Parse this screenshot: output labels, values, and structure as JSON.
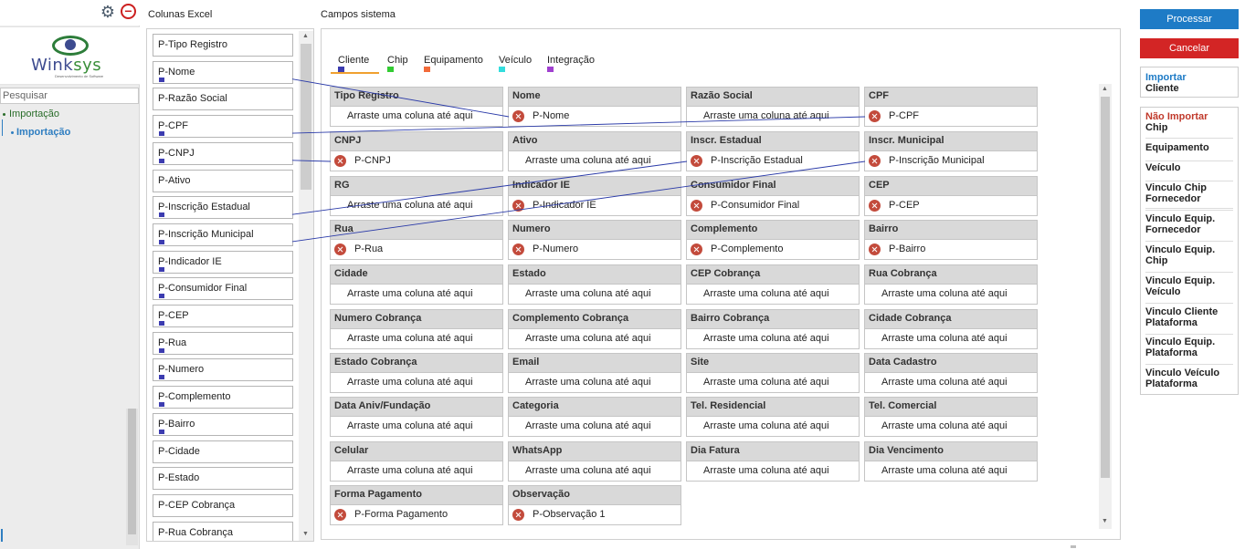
{
  "sidebar": {
    "logo_text_1": "Wink",
    "logo_text_2": "sys",
    "logo_subtitle": "Desenvolvimento de Software",
    "search_placeholder": "Pesquisar",
    "tree": [
      {
        "label": "Importação"
      },
      {
        "label": "Importação"
      }
    ]
  },
  "excel": {
    "title": "Colunas Excel",
    "columns": [
      {
        "label": "P-Tipo Registro",
        "marked": false
      },
      {
        "label": "P-Nome",
        "marked": true
      },
      {
        "label": "P-Razão Social",
        "marked": false
      },
      {
        "label": "P-CPF",
        "marked": true
      },
      {
        "label": "P-CNPJ",
        "marked": true
      },
      {
        "label": "P-Ativo",
        "marked": false
      },
      {
        "label": "P-Inscrição Estadual",
        "marked": true
      },
      {
        "label": "P-Inscrição Municipal",
        "marked": true
      },
      {
        "label": "P-Indicador IE",
        "marked": true
      },
      {
        "label": "P-Consumidor Final",
        "marked": true
      },
      {
        "label": "P-CEP",
        "marked": true
      },
      {
        "label": "P-Rua",
        "marked": true
      },
      {
        "label": "P-Numero",
        "marked": true
      },
      {
        "label": "P-Complemento",
        "marked": true
      },
      {
        "label": "P-Bairro",
        "marked": true
      },
      {
        "label": "P-Cidade",
        "marked": false
      },
      {
        "label": "P-Estado",
        "marked": false
      },
      {
        "label": "P-CEP Cobrança",
        "marked": false
      },
      {
        "label": "P-Rua Cobrança",
        "marked": false
      }
    ]
  },
  "campos": {
    "title": "Campos sistema",
    "tabs": [
      {
        "label": "Cliente",
        "color": "#3c3cb0"
      },
      {
        "label": "Chip",
        "color": "#33cc33"
      },
      {
        "label": "Equipamento",
        "color": "#f26b3a"
      },
      {
        "label": "Veículo",
        "color": "#33dddd"
      },
      {
        "label": "Integração",
        "color": "#a040d0"
      }
    ],
    "empty_text": "Arraste uma coluna até aqui",
    "fields": [
      {
        "label": "Tipo Registro",
        "mapped": ""
      },
      {
        "label": "Nome",
        "mapped": "P-Nome"
      },
      {
        "label": "Razão Social",
        "mapped": ""
      },
      {
        "label": "CPF",
        "mapped": "P-CPF"
      },
      {
        "label": "CNPJ",
        "mapped": "P-CNPJ"
      },
      {
        "label": "Ativo",
        "mapped": ""
      },
      {
        "label": "Inscr. Estadual",
        "mapped": "P-Inscrição Estadual"
      },
      {
        "label": "Inscr. Municipal",
        "mapped": "P-Inscrição Municipal"
      },
      {
        "label": "RG",
        "mapped": ""
      },
      {
        "label": "Indicador IE",
        "mapped": "P-Indicador IE"
      },
      {
        "label": "Consumidor Final",
        "mapped": "P-Consumidor Final"
      },
      {
        "label": "CEP",
        "mapped": "P-CEP"
      },
      {
        "label": "Rua",
        "mapped": "P-Rua"
      },
      {
        "label": "Numero",
        "mapped": "P-Numero"
      },
      {
        "label": "Complemento",
        "mapped": "P-Complemento"
      },
      {
        "label": "Bairro",
        "mapped": "P-Bairro"
      },
      {
        "label": "Cidade",
        "mapped": ""
      },
      {
        "label": "Estado",
        "mapped": ""
      },
      {
        "label": "CEP Cobrança",
        "mapped": ""
      },
      {
        "label": "Rua Cobrança",
        "mapped": ""
      },
      {
        "label": "Numero Cobrança",
        "mapped": ""
      },
      {
        "label": "Complemento Cobrança",
        "mapped": ""
      },
      {
        "label": "Bairro Cobrança",
        "mapped": ""
      },
      {
        "label": "Cidade Cobrança",
        "mapped": ""
      },
      {
        "label": "Estado Cobrança",
        "mapped": ""
      },
      {
        "label": "Email",
        "mapped": ""
      },
      {
        "label": "Site",
        "mapped": ""
      },
      {
        "label": "Data Cadastro",
        "mapped": ""
      },
      {
        "label": "Data Aniv/Fundação",
        "mapped": ""
      },
      {
        "label": "Categoria",
        "mapped": ""
      },
      {
        "label": "Tel. Residencial",
        "mapped": ""
      },
      {
        "label": "Tel. Comercial",
        "mapped": ""
      },
      {
        "label": "Celular",
        "mapped": ""
      },
      {
        "label": "WhatsApp",
        "mapped": ""
      },
      {
        "label": "Dia Fatura",
        "mapped": ""
      },
      {
        "label": "Dia Vencimento",
        "mapped": ""
      },
      {
        "label": "Forma Pagamento",
        "mapped": "P-Forma Pagamento"
      },
      {
        "label": "Observação",
        "mapped": "P-Observação 1"
      }
    ]
  },
  "actions": {
    "processar": "Processar",
    "cancelar": "Cancelar",
    "import_line1": "Importar",
    "import_line2": "Cliente"
  },
  "entities": [
    {
      "lines": [
        "Não Importar",
        "Chip"
      ],
      "first_color": "#c0392b"
    },
    {
      "lines": [
        "Equipamento"
      ]
    },
    {
      "lines": [
        "Veículo"
      ]
    },
    {
      "lines": [
        "Vinculo Chip",
        "Fornecedor"
      ]
    },
    {
      "lines": [
        "Vinculo Equip.",
        "Fornecedor"
      ]
    },
    {
      "lines": [
        "Vinculo Equip.",
        "Chip"
      ]
    },
    {
      "lines": [
        "Vinculo Equip.",
        "Veículo"
      ]
    },
    {
      "lines": [
        "Vinculo Cliente",
        "Plataforma"
      ]
    },
    {
      "lines": [
        "Vinculo Equip.",
        "Plataforma"
      ]
    },
    {
      "lines": [
        "Vinculo Veículo",
        "Plataforma"
      ]
    }
  ]
}
